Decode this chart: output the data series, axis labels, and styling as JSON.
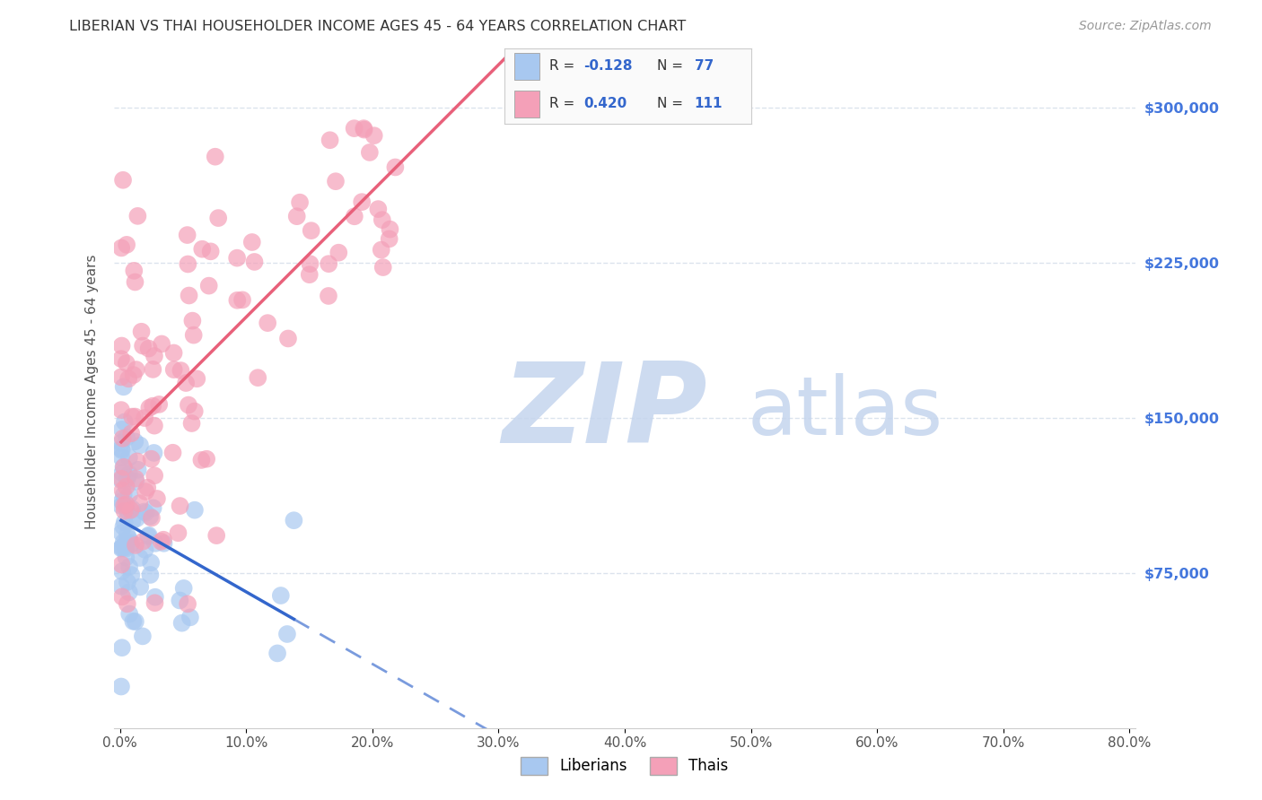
{
  "title": "LIBERIAN VS THAI HOUSEHOLDER INCOME AGES 45 - 64 YEARS CORRELATION CHART",
  "source": "Source: ZipAtlas.com",
  "ylabel": "Householder Income Ages 45 - 64 years",
  "liberian_R": -0.128,
  "liberian_N": 77,
  "thai_R": 0.42,
  "thai_N": 111,
  "liberian_color": "#a8c8f0",
  "thai_color": "#f4a0b8",
  "liberian_line_color": "#3366cc",
  "thai_line_color": "#e8607a",
  "background_color": "#ffffff",
  "grid_color": "#d8e0ec",
  "watermark_color": "#c5d5ee",
  "ylim": [
    0,
    325000
  ],
  "xlim": [
    -0.005,
    0.805
  ],
  "ytick_vals": [
    75000,
    150000,
    225000,
    300000
  ],
  "ytick_labels": [
    "$75,000",
    "$150,000",
    "$225,000",
    "$300,000"
  ],
  "xtick_vals": [
    0.0,
    0.1,
    0.2,
    0.3,
    0.4,
    0.5,
    0.6,
    0.7,
    0.8
  ],
  "xtick_labels": [
    "0.0%",
    "10.0%",
    "20.0%",
    "30.0%",
    "40.0%",
    "50.0%",
    "60.0%",
    "70.0%",
    "80.0%"
  ]
}
